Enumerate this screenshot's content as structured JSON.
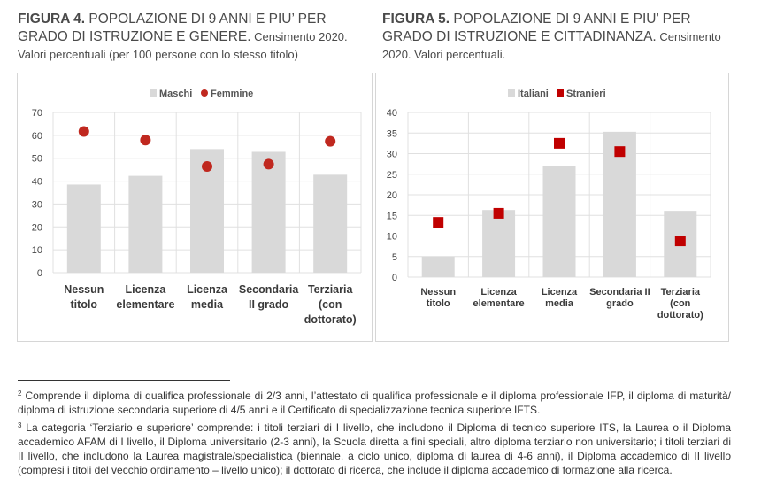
{
  "figure4": {
    "label": "FIGURA 4.",
    "title": " POPOLAZIONE DI 9 ANNI E PIU’ PER GRADO DI ISTRUZIONE E GENERE.",
    "title_suffix": " Censimento 2020.",
    "subtitle": "Valori percentuali (per 100 persone con lo stesso titolo)"
  },
  "figure5": {
    "label": "FIGURA 5.",
    "title": " POPOLAZIONE DI 9 ANNI E PIU’ PER GRADO DI ISTRUZIONE E CITTADINANZA.",
    "title_suffix": " Censimento 2020. Valori percentuali."
  },
  "chart_data": [
    {
      "type": "bar",
      "categories": [
        [
          "Nessun",
          "titolo"
        ],
        [
          "Licenza",
          "elementare"
        ],
        [
          "Licenza",
          "media"
        ],
        [
          "Secondaria",
          "II grado"
        ],
        [
          "Terziaria",
          "(con",
          "dottorato)"
        ]
      ],
      "series": [
        {
          "name": "Maschi",
          "kind": "bar",
          "color": "#d9d9d9",
          "values": [
            38.5,
            42.3,
            54.0,
            52.8,
            42.8
          ]
        },
        {
          "name": "Femmine",
          "kind": "marker-circle",
          "color": "#c0281f",
          "values": [
            61.7,
            57.9,
            46.4,
            47.4,
            57.4
          ]
        }
      ],
      "ylim": [
        0,
        70
      ],
      "yticks": [
        "0",
        "10",
        "20",
        "30",
        "40",
        "50",
        "60",
        "70"
      ],
      "ytick_values": [
        0,
        10,
        20,
        30,
        40,
        50,
        60,
        70
      ],
      "grid": true,
      "legend": "top-center"
    },
    {
      "type": "bar",
      "categories": [
        [
          "Nessun",
          "titolo"
        ],
        [
          "Licenza",
          "elementare"
        ],
        [
          "Licenza",
          "media"
        ],
        [
          "Secondaria II",
          "grado"
        ],
        [
          "Terziaria",
          "(con",
          "dottorato)"
        ]
      ],
      "series": [
        {
          "name": "Italiani",
          "kind": "bar",
          "color": "#d9d9d9",
          "values": [
            5.0,
            16.3,
            27.0,
            35.3,
            16.1
          ]
        },
        {
          "name": "Stranieri",
          "kind": "marker-square",
          "color": "#c00000",
          "values": [
            13.3,
            15.5,
            32.5,
            30.5,
            8.8
          ]
        }
      ],
      "ylim": [
        0,
        40
      ],
      "yticks": [
        "0",
        "5",
        "10",
        "15",
        "20",
        "25",
        "30",
        "35",
        "40"
      ],
      "ytick_values": [
        0,
        5,
        10,
        15,
        20,
        25,
        30,
        35,
        40
      ],
      "grid": true,
      "legend": "top-center"
    }
  ],
  "footnotes": [
    {
      "num": "2",
      "text": " Comprende il diploma di qualifica professionale di 2/3 anni, l’attestato di qualifica professionale e il diploma professionale IFP, il diploma di maturità/ diploma di istruzione secondaria superiore di 4/5 anni e il Certificato di specializzazione tecnica superiore IFTS."
    },
    {
      "num": "3",
      "text": " La categoria ‘Terziario e superiore’ comprende: i titoli terziari di I livello, che includono il Diploma di tecnico superiore ITS, la Laurea o il Diploma accademico AFAM di I livello, il Diploma universitario (2-3 anni), la Scuola diretta a fini speciali, altro diploma terziario non universitario; i titoli terziari di II livello, che includono la Laurea magistrale/specialistica (biennale, a ciclo unico, diploma di laurea di 4-6 anni), il Diploma accademico di II livello (compresi i titoli del vecchio ordinamento – livello unico); il dottorato di ricerca, che include il diploma accademico di formazione alla ricerca."
    }
  ]
}
